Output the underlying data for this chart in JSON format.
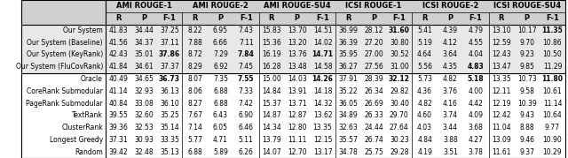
{
  "col_groups": [
    {
      "label": "AMI ROUGE-1",
      "cols": [
        "R",
        "P",
        "F-1"
      ]
    },
    {
      "label": "AMI ROUGE-2",
      "cols": [
        "R",
        "P",
        "F-1"
      ]
    },
    {
      "label": "AMI ROUGE-SU4",
      "cols": [
        "R",
        "P",
        "F-1"
      ]
    },
    {
      "label": "ICSI ROUGE-1",
      "cols": [
        "R",
        "P",
        "F-1"
      ]
    },
    {
      "label": "ICSI ROUGE-2",
      "cols": [
        "R",
        "P",
        "F-1"
      ]
    },
    {
      "label": "ICSI ROUGE-SU4",
      "cols": [
        "R",
        "P",
        "F-1"
      ]
    }
  ],
  "rows": [
    {
      "name": "Our System",
      "values": [
        41.83,
        34.44,
        37.25,
        8.22,
        6.95,
        7.43,
        15.83,
        13.7,
        14.51,
        36.99,
        28.12,
        31.6,
        5.41,
        4.39,
        4.79,
        13.1,
        10.17,
        11.35
      ],
      "bold": [
        false,
        false,
        false,
        false,
        false,
        false,
        false,
        false,
        false,
        false,
        false,
        true,
        false,
        false,
        false,
        false,
        false,
        true
      ],
      "group": 0
    },
    {
      "name": "Our System (Baseline)",
      "values": [
        41.56,
        34.37,
        37.11,
        7.88,
        6.66,
        7.11,
        15.36,
        13.2,
        14.02,
        36.39,
        27.2,
        30.8,
        5.19,
        4.12,
        4.55,
        12.59,
        9.7,
        10.86
      ],
      "bold": [
        false,
        false,
        false,
        false,
        false,
        false,
        false,
        false,
        false,
        false,
        false,
        false,
        false,
        false,
        false,
        false,
        false,
        false
      ],
      "group": 0
    },
    {
      "name": "Our System (KeyRank)",
      "values": [
        42.43,
        35.01,
        37.86,
        8.72,
        7.29,
        7.84,
        16.19,
        13.76,
        14.71,
        35.95,
        27.0,
        30.52,
        4.64,
        3.64,
        4.04,
        12.43,
        9.23,
        10.5
      ],
      "bold": [
        false,
        false,
        true,
        false,
        false,
        true,
        false,
        false,
        true,
        false,
        false,
        false,
        false,
        false,
        false,
        false,
        false,
        false
      ],
      "group": 0
    },
    {
      "name": "Our System (FluCovRank)",
      "values": [
        41.84,
        34.61,
        37.37,
        8.29,
        6.92,
        7.45,
        16.28,
        13.48,
        14.58,
        36.27,
        27.56,
        31.0,
        5.56,
        4.35,
        4.83,
        13.47,
        9.85,
        11.29
      ],
      "bold": [
        false,
        false,
        false,
        false,
        false,
        false,
        false,
        false,
        false,
        false,
        false,
        false,
        false,
        false,
        true,
        false,
        false,
        false
      ],
      "group": 0
    },
    {
      "name": "Oracle",
      "values": [
        40.49,
        34.65,
        36.73,
        8.07,
        7.35,
        7.55,
        15.0,
        14.03,
        14.26,
        37.91,
        28.39,
        32.12,
        5.73,
        4.82,
        5.18,
        13.35,
        10.73,
        11.8
      ],
      "bold": [
        false,
        false,
        true,
        false,
        false,
        true,
        false,
        false,
        true,
        false,
        false,
        true,
        false,
        false,
        true,
        false,
        false,
        true
      ],
      "group": 1
    },
    {
      "name": "CoreRank Submodular",
      "values": [
        41.14,
        32.93,
        36.13,
        8.06,
        6.88,
        7.33,
        14.84,
        13.91,
        14.18,
        35.22,
        26.34,
        29.82,
        4.36,
        3.76,
        4.0,
        12.11,
        9.58,
        10.61
      ],
      "bold": [
        false,
        false,
        false,
        false,
        false,
        false,
        false,
        false,
        false,
        false,
        false,
        false,
        false,
        false,
        false,
        false,
        false,
        false
      ],
      "group": 1
    },
    {
      "name": "PageRank Submodular",
      "values": [
        40.84,
        33.08,
        36.1,
        8.27,
        6.88,
        7.42,
        15.37,
        13.71,
        14.32,
        36.05,
        26.69,
        30.4,
        4.82,
        4.16,
        4.42,
        12.19,
        10.39,
        11.14
      ],
      "bold": [
        false,
        false,
        false,
        false,
        false,
        false,
        false,
        false,
        false,
        false,
        false,
        false,
        false,
        false,
        false,
        false,
        false,
        false
      ],
      "group": 1
    },
    {
      "name": "TextRank",
      "values": [
        39.55,
        32.6,
        35.25,
        7.67,
        6.43,
        6.9,
        14.87,
        12.87,
        13.62,
        34.89,
        26.33,
        29.7,
        4.6,
        3.74,
        4.09,
        12.42,
        9.43,
        10.64
      ],
      "bold": [
        false,
        false,
        false,
        false,
        false,
        false,
        false,
        false,
        false,
        false,
        false,
        false,
        false,
        false,
        false,
        false,
        false,
        false
      ],
      "group": 1
    },
    {
      "name": "ClusterRank",
      "values": [
        39.36,
        32.53,
        35.14,
        7.14,
        6.05,
        6.46,
        14.34,
        12.8,
        13.35,
        32.63,
        24.44,
        27.64,
        4.03,
        3.44,
        3.68,
        11.04,
        8.88,
        9.77
      ],
      "bold": [
        false,
        false,
        false,
        false,
        false,
        false,
        false,
        false,
        false,
        false,
        false,
        false,
        false,
        false,
        false,
        false,
        false,
        false
      ],
      "group": 1
    },
    {
      "name": "Longest Greedy",
      "values": [
        37.31,
        30.93,
        33.35,
        5.77,
        4.71,
        5.11,
        13.79,
        11.11,
        12.15,
        35.57,
        26.74,
        30.23,
        4.84,
        3.88,
        4.27,
        13.09,
        9.46,
        10.9
      ],
      "bold": [
        false,
        false,
        false,
        false,
        false,
        false,
        false,
        false,
        false,
        false,
        false,
        false,
        false,
        false,
        false,
        false,
        false,
        false
      ],
      "group": 1
    },
    {
      "name": "Random",
      "values": [
        39.42,
        32.48,
        35.13,
        6.88,
        5.89,
        6.26,
        14.07,
        12.7,
        13.17,
        34.78,
        25.75,
        29.28,
        4.19,
        3.51,
        3.78,
        11.61,
        9.37,
        10.29
      ],
      "bold": [
        false,
        false,
        false,
        false,
        false,
        false,
        false,
        false,
        false,
        false,
        false,
        false,
        false,
        false,
        false,
        false,
        false,
        false
      ],
      "group": 1
    }
  ],
  "group0_bg": "#e8e8e8",
  "group1_bg": "#ffffff",
  "header_bg": "#d0d0d0",
  "font_size": 5.5,
  "header_font_size": 6.0
}
